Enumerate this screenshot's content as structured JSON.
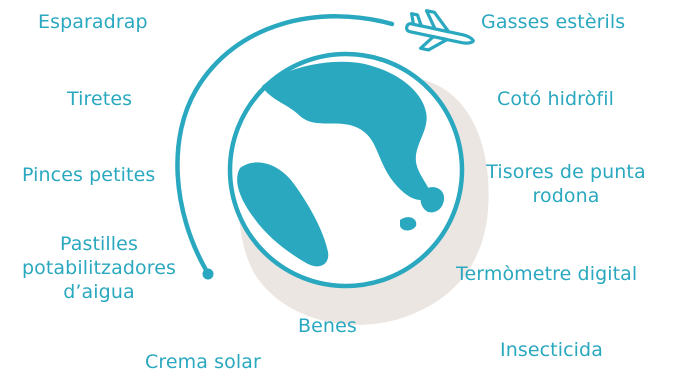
{
  "colors": {
    "accent": "#2aa8bf",
    "blob": "#ebe6e1",
    "background": "#ffffff"
  },
  "icons": {
    "globe": "globe-icon",
    "airplane": "airplane-icon",
    "orbit": "orbit-arc"
  },
  "items": {
    "esparadrap": "Esparadrap",
    "tiretes": "Tiretes",
    "pinces": "Pinces petites",
    "pastilles_1": "Pastilles",
    "pastilles_2": "potabilitzadores",
    "pastilles_3": "d’aigua",
    "crema": "Crema solar",
    "benes": "Benes",
    "gasses": "Gasses estèrils",
    "coto": "Cotó hidròfil",
    "tisores_1": "Tisores de punta",
    "tisores_2": "rodona",
    "termometre": "Termòmetre digital",
    "insecticida": "Insecticida"
  }
}
